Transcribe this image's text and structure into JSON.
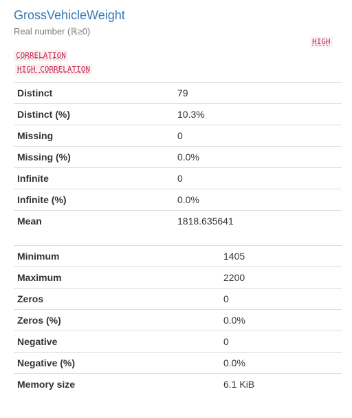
{
  "variable": {
    "name": "GrossVehicleWeight",
    "type_label": "Real number (ℝ≥0)"
  },
  "badges": {
    "warning_1_line1": "HIGH",
    "warning_1_line2": "CORRELATION",
    "warning_2": "HIGH CORRELATION"
  },
  "stats_table_1": [
    {
      "label": "Distinct",
      "value": "79"
    },
    {
      "label": "Distinct (%)",
      "value": "10.3%"
    },
    {
      "label": "Missing",
      "value": "0"
    },
    {
      "label": "Missing (%)",
      "value": "0.0%"
    },
    {
      "label": "Infinite",
      "value": "0"
    },
    {
      "label": "Infinite (%)",
      "value": "0.0%"
    },
    {
      "label": "Mean",
      "value": "1818.635641"
    }
  ],
  "stats_table_2": [
    {
      "label": "Minimum",
      "value": "1405"
    },
    {
      "label": "Maximum",
      "value": "2200"
    },
    {
      "label": "Zeros",
      "value": "0"
    },
    {
      "label": "Zeros (%)",
      "value": "0.0%"
    },
    {
      "label": "Negative",
      "value": "0"
    },
    {
      "label": "Negative (%)",
      "value": "0.0%"
    },
    {
      "label": "Memory size",
      "value": "6.1 KiB"
    }
  ]
}
